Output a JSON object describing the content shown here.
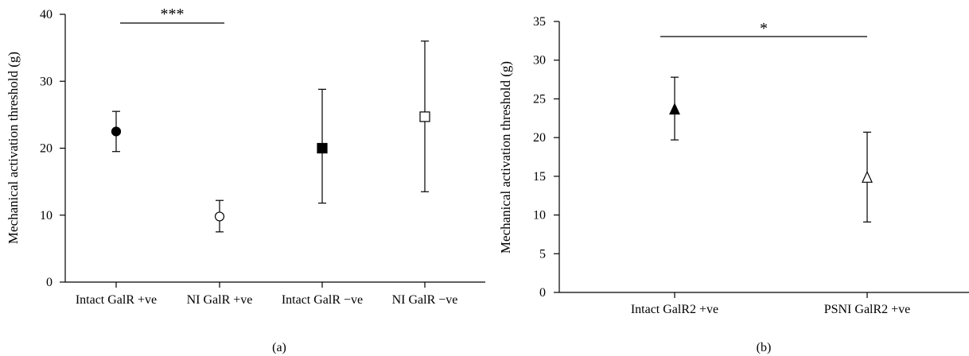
{
  "chart_data": [
    {
      "type": "scatter",
      "panel_label": "(a)",
      "ylabel": "Mechanical activation threshold (g)",
      "ylim": [
        0,
        40
      ],
      "yticks": [
        0,
        10,
        20,
        30,
        40
      ],
      "categories": [
        "Intact GalR +ve",
        "NI GalR +ve",
        "Intact GalR −ve",
        "NI GalR −ve"
      ],
      "points": [
        {
          "category": "Intact GalR +ve",
          "mean": 22.5,
          "low": 19.5,
          "high": 25.5,
          "marker": "filled-circle"
        },
        {
          "category": "NI GalR +ve",
          "mean": 9.8,
          "low": 7.5,
          "high": 12.2,
          "marker": "open-circle"
        },
        {
          "category": "Intact GalR −ve",
          "mean": 20.0,
          "low": 11.8,
          "high": 28.8,
          "marker": "filled-square"
        },
        {
          "category": "NI GalR −ve",
          "mean": 24.7,
          "low": 13.5,
          "high": 36.0,
          "marker": "open-square"
        }
      ],
      "significance": {
        "from": "Intact GalR +ve",
        "to": "NI GalR +ve",
        "label": "***"
      }
    },
    {
      "type": "scatter",
      "panel_label": "(b)",
      "ylabel": "Mechanical activation threshold (g)",
      "ylim": [
        0,
        35
      ],
      "yticks": [
        0,
        5,
        10,
        15,
        20,
        25,
        30,
        35
      ],
      "categories": [
        "Intact GalR2 +ve",
        "PSNI GalR2 +ve"
      ],
      "points": [
        {
          "category": "Intact GalR2 +ve",
          "mean": 23.6,
          "low": 19.7,
          "high": 27.8,
          "marker": "filled-triangle"
        },
        {
          "category": "PSNI GalR2 +ve",
          "mean": 14.8,
          "low": 9.1,
          "high": 20.7,
          "marker": "open-triangle"
        }
      ],
      "significance": {
        "from": "Intact GalR2 +ve",
        "to": "PSNI GalR2 +ve",
        "label": "*"
      }
    }
  ]
}
